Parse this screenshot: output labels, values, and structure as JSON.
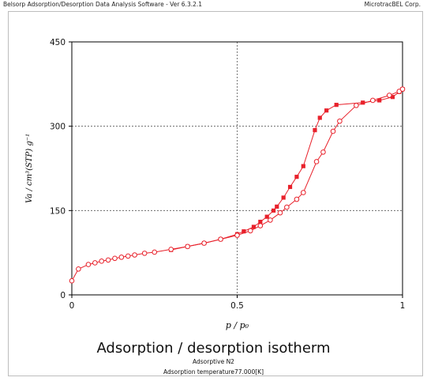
{
  "window": {
    "app_title": "Belsorp Adsorption/Desorption Data Analysis Software - Ver 6.3.2.1",
    "vendor": "MicrotracBEL Corp."
  },
  "captions": {
    "main": "Adsorption / desorption isotherm",
    "adsorptive": "Adsorptive N2",
    "temperature": "Adsorption temperature77.000[K]"
  },
  "colors": {
    "series": "#e8212b",
    "grid": "#555555",
    "axis": "#000000"
  },
  "chart_data": {
    "type": "scatter",
    "title": "Adsorption / desorption isotherm",
    "xlabel": "p / p₀",
    "ylabel": "Va / cm³(STP) g⁻¹",
    "xlim": [
      0,
      1
    ],
    "ylim": [
      0,
      450
    ],
    "xticks": [
      0,
      0.5,
      1
    ],
    "xtick_labels": [
      "0",
      "0.5",
      "1"
    ],
    "yticks": [
      0,
      150,
      300,
      450
    ],
    "ytick_labels": [
      "0",
      "150",
      "300",
      "450"
    ],
    "grid": "dashed, at x = 0.5 and y = 150, 300",
    "series": [
      {
        "marker": "filled",
        "points": [
          [
            0.3,
            80
          ],
          [
            0.35,
            86
          ],
          [
            0.4,
            92
          ],
          [
            0.45,
            99
          ],
          [
            0.5,
            108
          ],
          [
            0.52,
            113
          ],
          [
            0.55,
            121
          ],
          [
            0.57,
            130
          ],
          [
            0.59,
            139
          ],
          [
            0.61,
            150
          ],
          [
            0.62,
            157
          ],
          [
            0.64,
            173
          ],
          [
            0.66,
            192
          ],
          [
            0.68,
            210
          ],
          [
            0.7,
            229
          ],
          [
            0.735,
            293
          ],
          [
            0.75,
            315
          ],
          [
            0.77,
            328
          ],
          [
            0.8,
            338
          ],
          [
            0.88,
            342
          ],
          [
            0.93,
            346
          ],
          [
            0.97,
            352
          ],
          [
            0.99,
            361
          ],
          [
            1.0,
            366
          ]
        ]
      },
      {
        "marker": "open",
        "points": [
          [
            0.0,
            25
          ],
          [
            0.02,
            46
          ],
          [
            0.05,
            54
          ],
          [
            0.07,
            57
          ],
          [
            0.09,
            60
          ],
          [
            0.11,
            62
          ],
          [
            0.13,
            65
          ],
          [
            0.15,
            67
          ],
          [
            0.17,
            69
          ],
          [
            0.19,
            71
          ],
          [
            0.22,
            74
          ],
          [
            0.25,
            76
          ],
          [
            0.3,
            81
          ],
          [
            0.35,
            86
          ],
          [
            0.4,
            92
          ],
          [
            0.45,
            99
          ],
          [
            0.5,
            106
          ],
          [
            0.54,
            114
          ],
          [
            0.57,
            123
          ],
          [
            0.6,
            133
          ],
          [
            0.63,
            146
          ],
          [
            0.65,
            156
          ],
          [
            0.68,
            170
          ],
          [
            0.7,
            182
          ],
          [
            0.74,
            237
          ],
          [
            0.76,
            254
          ],
          [
            0.79,
            291
          ],
          [
            0.81,
            309
          ],
          [
            0.86,
            337
          ],
          [
            0.91,
            346
          ],
          [
            0.96,
            355
          ],
          [
            0.99,
            362
          ],
          [
            1.0,
            366
          ]
        ]
      }
    ]
  }
}
